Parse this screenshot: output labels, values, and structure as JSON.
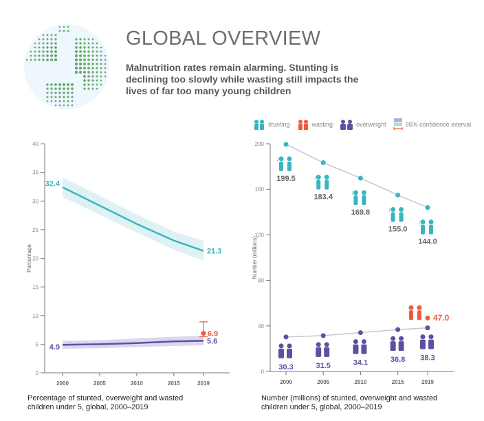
{
  "header": {
    "title": "GLOBAL OVERVIEW",
    "subtitle": "Malnutrition rates remain alarming. Stunting is declining too slowly while wasting still impacts the lives of far too many young children"
  },
  "legend": {
    "items": [
      {
        "label": "stunting",
        "color": "#3ab5c0",
        "icon": "children-icon"
      },
      {
        "label": "wasting",
        "color": "#f15a40",
        "icon": "children-icon"
      },
      {
        "label": "overweight",
        "color": "#5e4fa2",
        "icon": "children-icon"
      }
    ],
    "ci_label": "95% confidence interval"
  },
  "colors": {
    "stunting": "#3ab5c0",
    "wasting": "#f15a40",
    "overweight": "#5e4fa2",
    "stunting_ci": "#dff2f3",
    "overweight_ci": "#ddd6ec",
    "trend": "#c8c8c8",
    "globe_dots": "#6aaa6e",
    "globe_fill": "#eef7fd"
  },
  "chart_data": [
    {
      "type": "line",
      "caption": "Percentage of stunted, overweight and wasted children under 5, global, 2000–2019",
      "ylabel": "Percentage",
      "ylim": [
        0,
        40
      ],
      "yticks": [
        0,
        5,
        10,
        15,
        20,
        25,
        30,
        35,
        40
      ],
      "x": [
        2000,
        2005,
        2010,
        2015,
        2019
      ],
      "series": [
        {
          "key": "stunting",
          "values": [
            32.4,
            29.2,
            26.0,
            23.1,
            21.3
          ],
          "ci_low": [
            30.7,
            27.6,
            24.5,
            21.5,
            19.6
          ],
          "ci_high": [
            34.1,
            30.9,
            27.6,
            24.7,
            23.0
          ],
          "labels": {
            "start": "32.4",
            "end": "21.3"
          }
        },
        {
          "key": "overweight",
          "values": [
            4.9,
            5.0,
            5.2,
            5.5,
            5.6
          ],
          "ci_low": [
            4.2,
            4.3,
            4.5,
            4.7,
            4.8
          ],
          "ci_high": [
            5.6,
            5.7,
            6.0,
            6.3,
            6.5
          ],
          "labels": {
            "start": "4.9",
            "end": "5.6"
          }
        }
      ],
      "points": [
        {
          "key": "wasting",
          "x": 2019,
          "y": 6.9,
          "ci": [
            6.3,
            8.9
          ],
          "label": "6.9"
        }
      ]
    },
    {
      "type": "scatter",
      "caption": "Number (millions) of stunted, overweight and wasted children under 5, global, 2000–2019",
      "ylabel": "Number (millions)",
      "ylim": [
        0,
        200
      ],
      "yticks": [
        0,
        40,
        80,
        120,
        160,
        200
      ],
      "x": [
        2000,
        2005,
        2010,
        2015,
        2019
      ],
      "series": [
        {
          "key": "stunting",
          "values": [
            199.5,
            183.4,
            169.8,
            155.0,
            144.0
          ],
          "labels": [
            "199.5",
            "183.4",
            "169.8",
            "155.0",
            "144.0"
          ]
        },
        {
          "key": "overweight",
          "values": [
            30.3,
            31.5,
            34.1,
            36.8,
            38.3
          ],
          "labels": [
            "30.3",
            "31.5",
            "34.1",
            "36.8",
            "38.3"
          ]
        }
      ],
      "points": [
        {
          "key": "wasting",
          "x": 2019,
          "y": 47.0,
          "label": "47.0"
        }
      ]
    }
  ]
}
